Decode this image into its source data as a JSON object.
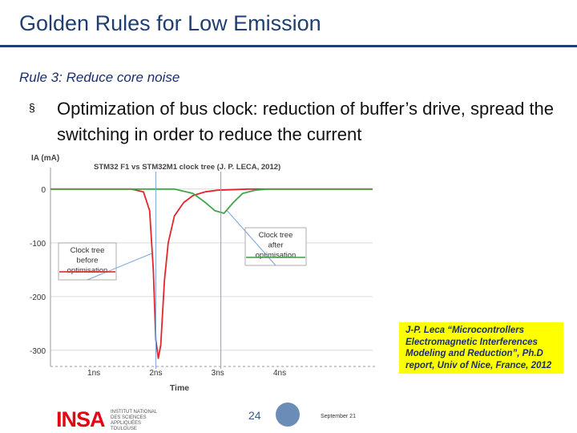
{
  "slide": {
    "title": "Golden Rules for Low Emission",
    "subtitle": "Rule 3: Reduce core noise",
    "bullet_marker": "§",
    "bullet_text": "Optimization of bus clock: reduction of buffer’s drive, spread the switching in order to reduce the current",
    "citation": "J-P. Leca “Microcontrollers Electromagnetic Interferences Modeling and Reduction”, Ph.D report, Univ of Nice, France, 2012",
    "footer": {
      "logo": "INSA",
      "logo_subtext": "INSTITUT NATIONAL DES SCIENCES APPLIQUÉES TOULOUSE",
      "page_number": "24",
      "date": "September 21"
    }
  },
  "colors": {
    "title": "#1f3f73",
    "red_curve": "#e2262c",
    "green_curve": "#3fa64a",
    "citation_bg": "#ffff00",
    "logo": "#e30613"
  },
  "chart_data": {
    "type": "line",
    "title": "STM32 F1 vs STM32M1 clock tree (J. P. LECA, 2012)",
    "ylabel": "IA (mA)",
    "xlabel": "Time",
    "x_ticks": [
      "1ns",
      "2ns",
      "3ns",
      "4ns"
    ],
    "y_ticks": [
      0,
      -100,
      -200,
      -300
    ],
    "xlim": [
      0.3,
      5.5
    ],
    "ylim": [
      -330,
      40
    ],
    "grid": true,
    "series": [
      {
        "color": "#e2262c",
        "x": [
          0.3,
          1.6,
          1.8,
          1.9,
          1.96,
          2.0,
          2.04,
          2.08,
          2.14,
          2.2,
          2.3,
          2.45,
          2.6,
          2.8,
          3.0,
          3.5,
          4.2,
          5.5
        ],
        "y": [
          0,
          0,
          -5,
          -40,
          -150,
          -280,
          -315,
          -290,
          -170,
          -100,
          -50,
          -25,
          -12,
          -5,
          -2,
          0,
          0,
          0
        ]
      },
      {
        "color": "#3fa64a",
        "x": [
          0.3,
          2.3,
          2.6,
          2.8,
          2.95,
          3.1,
          3.25,
          3.4,
          3.6,
          3.8,
          4.0,
          4.5,
          5.5
        ],
        "y": [
          0,
          0,
          -8,
          -25,
          -40,
          -45,
          -25,
          -8,
          -2,
          0,
          0,
          0,
          0
        ]
      }
    ],
    "annotations": [
      {
        "text": [
          "Clock tree",
          "before",
          "optimisation"
        ],
        "color": "#e2262c"
      },
      {
        "text": [
          "Clock tree",
          "after",
          "optimisation"
        ],
        "color": "#3fa64a"
      }
    ]
  }
}
